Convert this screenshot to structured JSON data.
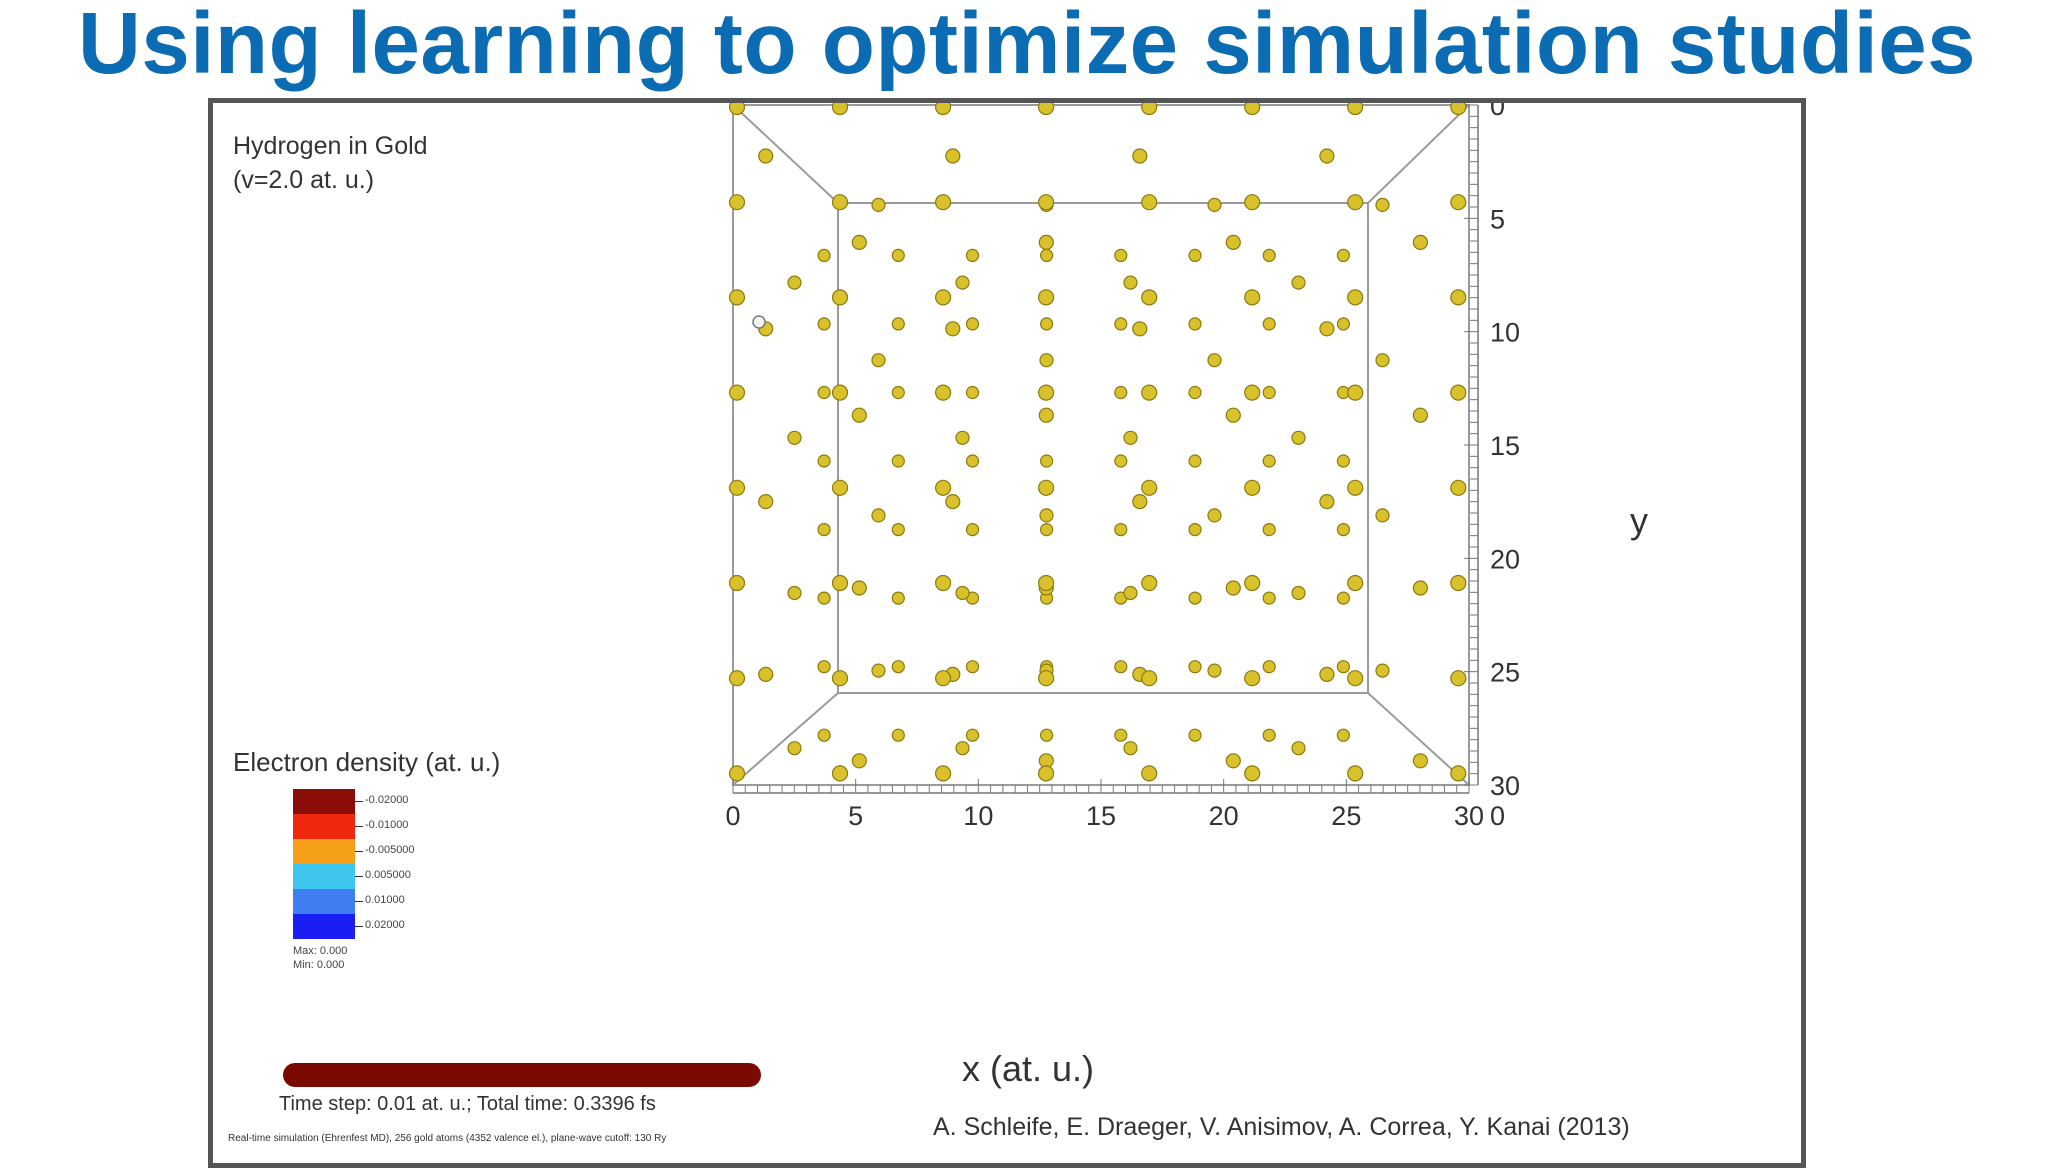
{
  "slide": {
    "title": "Using learning to optimize simulation studies"
  },
  "simulation": {
    "name": "Hydrogen in Gold",
    "velocity": "(v=2.0 at. u.)",
    "time_info": "Time step: 0.01 at. u.; Total time: 0.3396 fs",
    "note": "Real-time simulation (Ehrenfest MD), 256 gold atoms (4352 valence el.), plane-wave cutoff: 130 Ry",
    "credit": "A. Schleife, E. Draeger, V. Anisimov, A. Correa, Y. Kanai (2013)",
    "progress": 1.0
  },
  "legend": {
    "title": "Electron density (at. u.)",
    "entries": [
      {
        "label": "-0.02000",
        "color": "#8b0d08"
      },
      {
        "label": "-0.01000",
        "color": "#f0280e"
      },
      {
        "label": "-0.005000",
        "color": "#f6a01a"
      },
      {
        "label": "0.005000",
        "color": "#3fc6ee"
      },
      {
        "label": "0.01000",
        "color": "#3e7ef2"
      },
      {
        "label": "0.02000",
        "color": "#1a1ef5"
      }
    ],
    "max": "Max: 0.000",
    "min": "Min: 0.000"
  },
  "axes": {
    "x_label": "x (at. u.)",
    "y_label": "y",
    "x_ticks": [
      "0",
      "5",
      "10",
      "15",
      "20",
      "25",
      "30"
    ],
    "y_ticks": [
      "0",
      "5",
      "10",
      "15",
      "20",
      "25",
      "30"
    ],
    "corner_zero": "0"
  },
  "colors": {
    "title": "#0b6bb3",
    "atom": "#d8c12a",
    "atom_edge": "#8a7a10",
    "frame": "#555555",
    "box_line": "#9a9a9a"
  }
}
